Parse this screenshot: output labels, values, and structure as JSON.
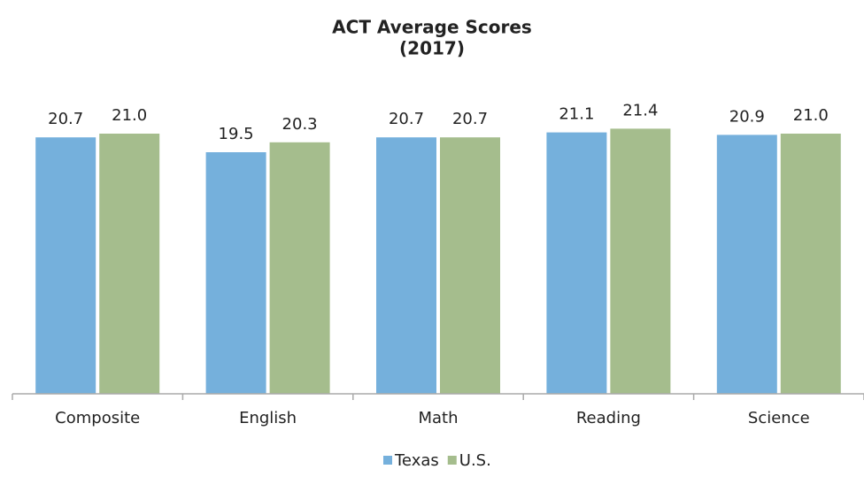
{
  "chart_data": {
    "type": "bar",
    "title": "ACT Average Scores",
    "subtitle": "(2017)",
    "categories": [
      "Composite",
      "English",
      "Math",
      "Reading",
      "Science"
    ],
    "series": [
      {
        "name": "Texas",
        "color": "#75b0dc",
        "values": [
          20.7,
          19.5,
          20.7,
          21.1,
          20.9
        ],
        "value_labels": [
          "20.7",
          "19.5",
          "20.7",
          "21.1",
          "20.9"
        ]
      },
      {
        "name": "U.S.",
        "color": "#a5bd8d",
        "values": [
          21.0,
          20.3,
          20.7,
          21.4,
          21.0
        ],
        "value_labels": [
          "21.0",
          "20.3",
          "20.7",
          "21.4",
          "21.0"
        ]
      }
    ],
    "ylim": [
      0,
      30
    ],
    "legend": "bottom"
  }
}
